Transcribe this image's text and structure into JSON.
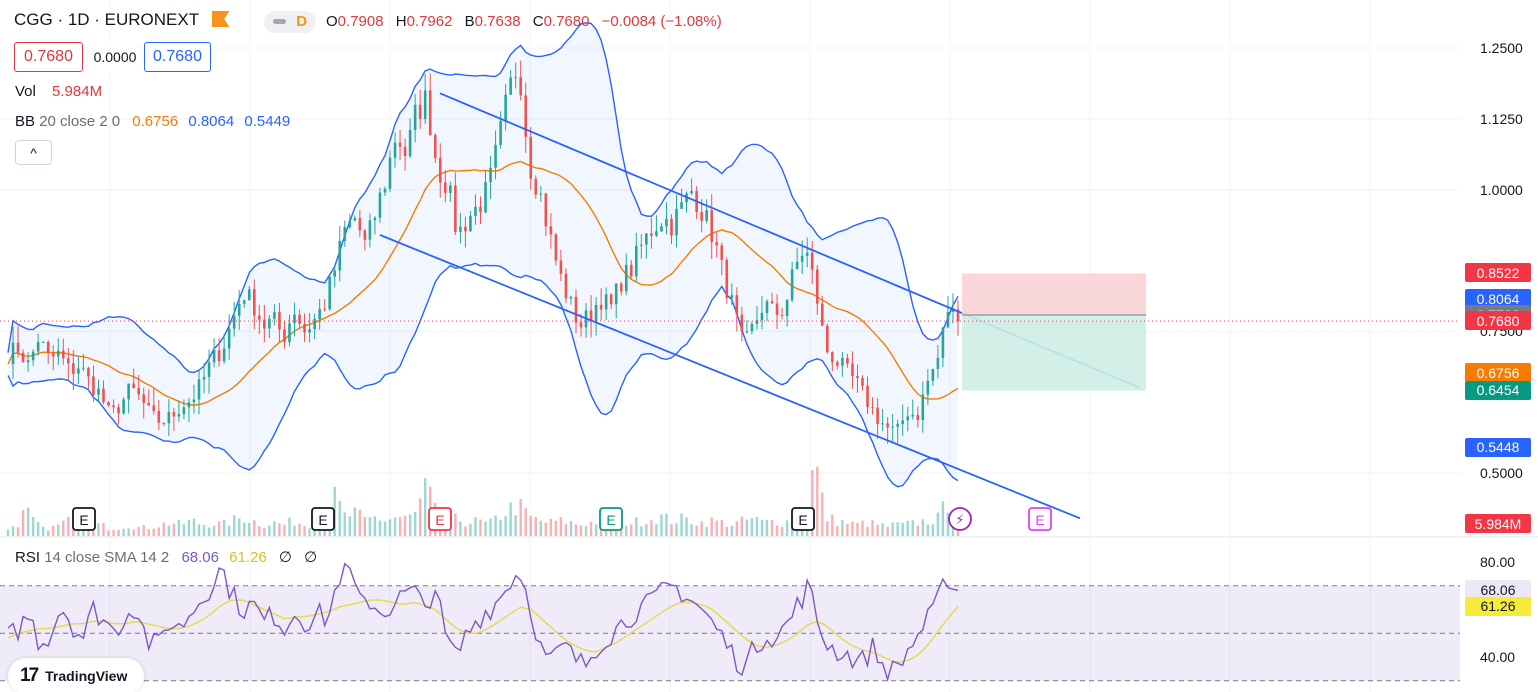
{
  "header": {
    "symbol": "CGG · 1D · EURONEXT",
    "interval_badge": "D",
    "ohlc": {
      "o_key": "O",
      "o": "0.7908",
      "h_key": "H",
      "h": "0.7962",
      "l_key": "B",
      "l": "0.7638",
      "c_key": "C",
      "c": "0.7680",
      "change": "−0.0084 (−1.08%)"
    },
    "bid": "0.7680",
    "spread": "0.0000",
    "ask": "0.7680",
    "vol_label": "Vol",
    "vol_value": "5.984M",
    "bb_label": "BB",
    "bb_params": "20 close 2 0",
    "bb_basis": "0.6756",
    "bb_upper": "0.8064",
    "bb_lower": "0.5449",
    "collapse_icon": "^"
  },
  "rsi_legend": {
    "label": "RSI",
    "params": "14 close SMA 14 2",
    "rsi": "68.06",
    "sma": "61.26",
    "icon1": "∅",
    "icon2": "∅"
  },
  "logo": {
    "mark": "17",
    "text": "TradingView"
  },
  "colors": {
    "up": "#26a69a",
    "down": "#ef5350",
    "bb_band": "#2962ff",
    "bb_basis": "#f57c00",
    "rsi": "#7e57c2",
    "rsi_sma": "#e8d84a",
    "channel": "#2962ff",
    "stop_zone": "#f8d3d6",
    "target_zone": "#cdeee6"
  },
  "chart_data": [
    {
      "type": "candlestick",
      "panel": "price",
      "y_axis_ticks": [
        "1.2500",
        "1.1250",
        "1.0000",
        "0.7500",
        "0.5000"
      ],
      "y_axis_values": [
        1.25,
        1.125,
        1.0,
        0.75,
        0.5
      ],
      "price_tags": [
        {
          "label": "0.8522",
          "value": 0.8522,
          "color": "#f23645"
        },
        {
          "label": "0.8064",
          "value": 0.8064,
          "color": "#2962ff"
        },
        {
          "label": "0.7788",
          "value": 0.7788,
          "color": "#787b86"
        },
        {
          "label": "0.7680",
          "value": 0.768,
          "color": "#f23645"
        },
        {
          "label": "0.6756",
          "value": 0.6756,
          "color": "#f57c00"
        },
        {
          "label": "0.6454",
          "value": 0.6454,
          "color": "#089981"
        },
        {
          "label": "0.5448",
          "value": 0.5448,
          "color": "#2962ff"
        }
      ],
      "close_path": [
        0.71,
        0.72,
        0.69,
        0.74,
        0.7,
        0.71,
        0.68,
        0.69,
        0.66,
        0.64,
        0.6,
        0.62,
        0.65,
        0.63,
        0.6,
        0.59,
        0.6,
        0.62,
        0.63,
        0.66,
        0.7,
        0.72,
        0.77,
        0.82,
        0.8,
        0.76,
        0.77,
        0.74,
        0.79,
        0.75,
        0.77,
        0.8,
        0.86,
        0.93,
        0.95,
        0.9,
        0.96,
        1.02,
        1.1,
        1.06,
        1.14,
        1.16,
        1.04,
        1.01,
        0.92,
        0.95,
        0.97,
        1.0,
        1.08,
        1.17,
        1.23,
        1.05,
        1.0,
        0.92,
        0.85,
        0.8,
        0.76,
        0.78,
        0.81,
        0.79,
        0.84,
        0.86,
        0.9,
        0.93,
        0.95,
        0.94,
        0.97,
        1.0,
        0.96,
        0.92,
        0.85,
        0.79,
        0.72,
        0.76,
        0.8,
        0.78,
        0.79,
        0.86,
        0.9,
        0.83,
        0.72,
        0.7,
        0.68,
        0.66,
        0.63,
        0.6,
        0.58,
        0.57,
        0.61,
        0.6,
        0.66,
        0.7,
        0.79,
        0.768
      ],
      "volume_path": [
        0.2,
        0.3,
        0.9,
        0.3,
        0.2,
        0.25,
        0.4,
        0.3,
        0.2,
        0.3,
        0.2,
        0.25,
        0.3,
        0.2,
        0.25,
        0.3,
        0.35,
        0.3,
        0.4,
        0.3,
        0.35,
        0.3,
        0.4,
        0.5,
        0.4,
        0.3,
        0.35,
        0.3,
        0.4,
        0.3,
        0.35,
        0.3,
        1.0,
        0.5,
        0.6,
        0.4,
        0.5,
        0.4,
        0.5,
        0.45,
        0.6,
        1.3,
        0.5,
        0.4,
        0.45,
        0.35,
        0.4,
        0.3,
        0.5,
        0.7,
        0.8,
        0.5,
        0.4,
        0.35,
        0.4,
        0.35,
        0.3,
        0.35,
        0.4,
        0.35,
        0.4,
        0.35,
        0.4,
        0.45,
        0.5,
        0.4,
        0.45,
        0.4,
        0.35,
        0.4,
        0.35,
        0.3,
        0.4,
        0.45,
        0.35,
        0.4,
        0.35,
        0.45,
        0.5,
        2.0,
        0.5,
        0.4,
        0.35,
        0.3,
        0.35,
        0.3,
        0.25,
        0.3,
        0.3,
        0.35,
        0.4,
        0.45,
        0.9,
        0.6
      ],
      "channel": {
        "upper_start": 1.17,
        "upper_end": 0.65,
        "lower_start": 0.92,
        "lower_end": 0.42
      },
      "position": {
        "entry": 0.7788,
        "stop": 0.8522,
        "target": 0.6454
      },
      "earnings_markers": [
        "E",
        "E",
        "E",
        "E",
        "E",
        "E"
      ],
      "dividend_marker": "⚡",
      "volume_tag": "5.984M"
    },
    {
      "type": "line",
      "panel": "rsi",
      "y_axis_ticks": [
        "80.00",
        "40.00"
      ],
      "y_axis_values": [
        80,
        40
      ],
      "band": [
        30,
        70
      ],
      "series": [
        {
          "values": [
            48,
            52,
            58,
            45,
            50,
            62,
            54,
            48,
            60,
            56,
            50,
            58,
            62,
            47,
            44,
            55,
            52,
            58,
            64,
            70,
            78,
            66,
            60,
            62,
            55,
            58,
            52,
            60,
            54,
            58,
            56,
            74,
            76,
            62,
            64,
            58,
            62,
            66,
            68,
            60,
            70,
            48,
            40,
            50,
            56,
            60,
            64,
            72,
            76,
            60,
            42,
            38,
            45,
            40,
            36,
            44,
            48,
            52,
            56,
            60,
            62,
            66,
            70,
            68,
            64,
            60,
            54,
            48,
            40,
            36,
            44,
            50,
            48,
            54,
            62,
            70,
            52,
            44,
            42,
            40,
            38,
            44,
            36,
            34,
            40,
            48,
            54,
            62,
            74,
            68.06
          ]
        },
        {
          "values": [
            48,
            50,
            51,
            52,
            52,
            53,
            54,
            54,
            55,
            55,
            54,
            54,
            55,
            54,
            53,
            52,
            52,
            53,
            55,
            58,
            62,
            64,
            64,
            62,
            60,
            58,
            56,
            57,
            57,
            58,
            59,
            61,
            62,
            63,
            64,
            64,
            63,
            62,
            63,
            62,
            60,
            56,
            52,
            50,
            50,
            52,
            55,
            58,
            61,
            60,
            56,
            52,
            48,
            45,
            43,
            42,
            44,
            46,
            49,
            52,
            55,
            58,
            61,
            63,
            63,
            62,
            60,
            56,
            52,
            48,
            45,
            44,
            45,
            47,
            50,
            54,
            55,
            52,
            48,
            45,
            43,
            42,
            40,
            38,
            38,
            40,
            44,
            50,
            56,
            61.26
          ]
        }
      ],
      "tags": [
        {
          "label": "68.06",
          "value": 68.06,
          "color": "#ede7f6",
          "text_color": "#131722"
        },
        {
          "label": "61.26",
          "value": 61.26,
          "color": "#f6eb3b",
          "text_color": "#131722"
        }
      ]
    }
  ]
}
